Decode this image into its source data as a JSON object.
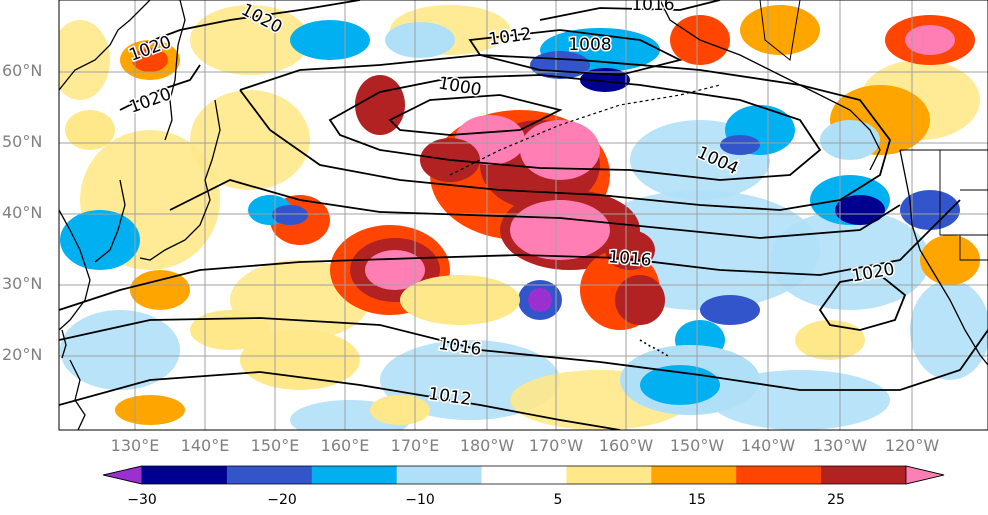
{
  "map": {
    "latitude_labels": [
      "60°N",
      "50°N",
      "40°N",
      "30°N",
      "20°N"
    ],
    "longitude_labels": [
      "130°E",
      "140°E",
      "150°E",
      "160°E",
      "170°E",
      "180°W",
      "170°W",
      "160°W",
      "150°W",
      "140°W",
      "130°W",
      "120°W"
    ],
    "isobar_labels": [
      "1016",
      "1020",
      "1020",
      "1020",
      "1012",
      "1008",
      "1000",
      "1004",
      "1016",
      "1020",
      "1016",
      "1012"
    ],
    "colorbar": {
      "tick_labels": [
        "−30",
        "−20",
        "−10",
        "5",
        "15",
        "25"
      ],
      "colors": [
        "#9b30d0",
        "#000090",
        "#3355cc",
        "#00b0f0",
        "#b0e0f8",
        "#ffffff",
        "#ffe88a",
        "#ffa500",
        "#ff4500",
        "#b22222",
        "#ff7eb4"
      ]
    },
    "colors": {
      "grid": "#a0a0a0",
      "coast": "#000000",
      "isobar": "#000000",
      "label": "#808080"
    }
  }
}
